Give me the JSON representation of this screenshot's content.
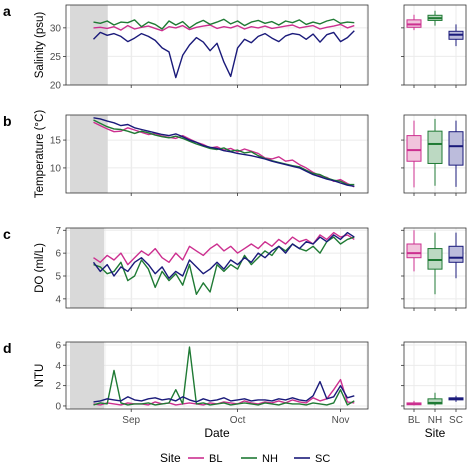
{
  "colors": {
    "BL": "#cc2f8f",
    "NH": "#1f7a34",
    "SC": "#1a1a7a",
    "shade": "#d9d9d9",
    "grid": "#ebebeb",
    "panel_border": "#333333",
    "box_fill_BL": "#f1c4dc",
    "box_fill_NH": "#bcd9c2",
    "box_fill_SC": "#bcbcdc"
  },
  "xaxis": {
    "title": "Date",
    "ticks": [
      "Sep",
      "Oct",
      "Nov"
    ]
  },
  "legend": {
    "title": "Site",
    "entries": [
      "BL",
      "NH",
      "SC"
    ],
    "position": "bottom"
  },
  "box_xaxis": {
    "title": "Site",
    "ticks": [
      "BL",
      "NH",
      "SC"
    ]
  },
  "chart_data": [
    {
      "panel": "a",
      "type": "line",
      "ylabel": "Salinity (psu)",
      "yticks": [
        "20",
        "25",
        "30"
      ],
      "ylim": [
        20,
        34
      ],
      "shaded_range": [
        0,
        11
      ],
      "x": [
        8,
        10,
        12,
        14,
        16,
        18,
        20,
        22,
        24,
        26,
        28,
        30,
        32,
        34,
        36,
        38,
        40,
        42,
        44,
        46,
        48,
        50,
        52,
        54,
        56,
        58,
        60,
        62,
        64,
        66,
        68,
        70,
        72,
        74,
        76,
        78,
        80,
        82,
        84
      ],
      "series": [
        {
          "name": "BL",
          "values": [
            30.0,
            30.1,
            29.9,
            30.2,
            29.6,
            30.4,
            29.8,
            30.1,
            30.3,
            29.9,
            29.5,
            30.2,
            30.0,
            30.4,
            29.7,
            30.1,
            30.3,
            30.5,
            29.9,
            30.2,
            30.0,
            30.4,
            29.8,
            30.2,
            30.0,
            30.3,
            29.9,
            30.1,
            30.3,
            30.5,
            30.0,
            30.2,
            30.4,
            29.8,
            30.1,
            30.3,
            30.6,
            30.0,
            30.4
          ]
        },
        {
          "name": "NH",
          "values": [
            31.0,
            30.8,
            31.2,
            30.5,
            31.0,
            30.9,
            31.4,
            30.2,
            31.0,
            30.6,
            29.8,
            31.2,
            30.5,
            31.1,
            30.0,
            30.8,
            31.3,
            30.6,
            31.0,
            31.5,
            30.7,
            31.2,
            30.4,
            31.0,
            31.3,
            30.8,
            31.1,
            30.5,
            31.2,
            30.9,
            31.4,
            30.6,
            31.0,
            30.7,
            31.2,
            31.5,
            30.8,
            31.0,
            30.9
          ]
        },
        {
          "name": "SC",
          "values": [
            28.0,
            29.2,
            28.7,
            29.0,
            28.5,
            27.6,
            28.2,
            29.0,
            28.5,
            27.8,
            26.5,
            25.8,
            21.3,
            25.2,
            27.0,
            28.3,
            27.5,
            26.0,
            27.3,
            24.0,
            21.5,
            26.5,
            28.0,
            27.4,
            28.5,
            29.0,
            28.2,
            27.6,
            28.6,
            29.0,
            28.8,
            28.0,
            28.9,
            27.5,
            28.8,
            29.2,
            27.6,
            28.3,
            29.5
          ]
        }
      ],
      "box": {
        "ylim": [
          20,
          34
        ],
        "stats": [
          {
            "site": "BL",
            "whislo": 29.6,
            "q1": 30.1,
            "median": 30.6,
            "q3": 31.4,
            "whishi": 32.3
          },
          {
            "site": "NH",
            "whislo": 30.4,
            "q1": 31.3,
            "median": 31.7,
            "q3": 32.2,
            "whishi": 33.0
          },
          {
            "site": "SC",
            "whislo": 26.8,
            "q1": 28.0,
            "median": 28.8,
            "q3": 29.4,
            "whishi": 30.6
          }
        ]
      }
    },
    {
      "panel": "b",
      "type": "line",
      "ylabel": "Temperature (°C)",
      "yticks": [
        "10",
        "15"
      ],
      "ylim": [
        5.5,
        19.5
      ],
      "shaded_range": [
        0,
        11
      ],
      "x": [
        8,
        10,
        12,
        14,
        16,
        18,
        20,
        22,
        24,
        26,
        28,
        30,
        32,
        34,
        36,
        38,
        40,
        42,
        44,
        46,
        48,
        50,
        52,
        54,
        56,
        58,
        60,
        62,
        64,
        66,
        68,
        70,
        72,
        74,
        76,
        78,
        80,
        82,
        84
      ],
      "series": [
        {
          "name": "BL",
          "values": [
            18.2,
            17.6,
            17.0,
            16.5,
            16.6,
            17.2,
            16.8,
            16.4,
            16.0,
            16.2,
            15.7,
            15.5,
            15.3,
            15.8,
            15.2,
            14.6,
            14.2,
            13.6,
            13.8,
            13.2,
            13.5,
            12.9,
            13.4,
            13.0,
            12.6,
            11.8,
            11.6,
            12.0,
            11.2,
            11.4,
            10.6,
            10.0,
            9.2,
            8.6,
            8.3,
            7.6,
            7.9,
            7.2,
            6.6
          ]
        },
        {
          "name": "NH",
          "values": [
            18.6,
            18.0,
            17.4,
            17.0,
            16.9,
            16.6,
            16.2,
            16.6,
            16.3,
            15.9,
            15.6,
            15.4,
            15.7,
            15.3,
            14.8,
            14.3,
            13.9,
            13.5,
            13.3,
            13.6,
            13.0,
            13.2,
            12.7,
            12.9,
            12.2,
            11.7,
            11.3,
            11.0,
            10.7,
            10.4,
            10.2,
            9.6,
            9.0,
            8.8,
            8.2,
            7.8,
            7.6,
            7.0,
            7.0
          ]
        },
        {
          "name": "SC",
          "values": [
            19.0,
            18.8,
            18.4,
            18.1,
            17.6,
            17.8,
            17.2,
            16.9,
            16.6,
            16.3,
            16.0,
            15.8,
            16.1,
            15.6,
            15.0,
            14.6,
            14.0,
            13.7,
            13.5,
            13.1,
            12.9,
            12.6,
            12.4,
            12.2,
            11.9,
            11.6,
            11.2,
            10.9,
            10.6,
            10.3,
            10.0,
            9.4,
            8.8,
            8.4,
            8.0,
            7.7,
            7.3,
            6.9,
            6.7
          ]
        }
      ],
      "box": {
        "ylim": [
          5.5,
          19.5
        ],
        "stats": [
          {
            "site": "BL",
            "whislo": 6.5,
            "q1": 11.2,
            "median": 13.2,
            "q3": 15.8,
            "whishi": 18.5
          },
          {
            "site": "NH",
            "whislo": 6.8,
            "q1": 10.8,
            "median": 14.3,
            "q3": 16.6,
            "whishi": 18.8
          },
          {
            "site": "SC",
            "whislo": 6.6,
            "q1": 10.5,
            "median": 13.9,
            "q3": 16.5,
            "whishi": 18.5
          }
        ]
      }
    },
    {
      "panel": "c",
      "type": "line",
      "ylabel": "DO (ml/L)",
      "yticks": [
        "4",
        "5",
        "6",
        "7"
      ],
      "ylim": [
        3.6,
        7.1
      ],
      "shaded_range": [
        0,
        10
      ],
      "x": [
        8,
        10,
        12,
        14,
        16,
        18,
        20,
        22,
        24,
        26,
        28,
        30,
        32,
        34,
        36,
        38,
        40,
        42,
        44,
        46,
        48,
        50,
        52,
        54,
        56,
        58,
        60,
        62,
        64,
        66,
        68,
        70,
        72,
        74,
        76,
        78,
        80,
        82,
        84
      ],
      "series": [
        {
          "name": "BL",
          "values": [
            5.8,
            5.6,
            5.9,
            5.7,
            6.0,
            5.5,
            5.8,
            6.1,
            5.9,
            6.2,
            5.8,
            5.6,
            6.0,
            5.7,
            6.3,
            6.1,
            5.9,
            6.2,
            6.4,
            6.1,
            6.3,
            6.0,
            6.2,
            6.4,
            6.2,
            6.5,
            6.3,
            6.6,
            6.4,
            6.7,
            6.5,
            6.6,
            6.4,
            6.8,
            6.6,
            6.9,
            6.7,
            6.8,
            6.6
          ]
        },
        {
          "name": "NH",
          "values": [
            5.5,
            5.4,
            5.1,
            5.2,
            5.6,
            4.8,
            5.0,
            5.7,
            5.3,
            4.5,
            5.2,
            4.8,
            5.1,
            4.6,
            5.5,
            4.2,
            4.7,
            4.3,
            5.5,
            5.2,
            5.5,
            5.3,
            5.9,
            5.5,
            5.8,
            6.1,
            5.9,
            6.3,
            6.1,
            6.4,
            6.2,
            6.1,
            6.3,
            6.0,
            6.5,
            6.7,
            6.4,
            6.6,
            6.7
          ]
        },
        {
          "name": "SC",
          "values": [
            5.6,
            5.2,
            5.5,
            5.0,
            5.4,
            5.2,
            5.6,
            5.8,
            5.5,
            5.1,
            5.4,
            4.9,
            5.2,
            5.0,
            5.7,
            5.4,
            5.1,
            5.3,
            5.6,
            5.3,
            5.7,
            5.5,
            5.8,
            5.6,
            6.0,
            5.8,
            6.1,
            6.3,
            6.0,
            6.4,
            6.2,
            6.5,
            6.4,
            6.7,
            6.5,
            6.8,
            6.6,
            6.9,
            6.7
          ]
        }
      ],
      "box": {
        "ylim": [
          3.6,
          7.1
        ],
        "stats": [
          {
            "site": "BL",
            "whislo": 5.2,
            "q1": 5.8,
            "median": 6.0,
            "q3": 6.4,
            "whishi": 7.0
          },
          {
            "site": "NH",
            "whislo": 4.2,
            "q1": 5.3,
            "median": 5.7,
            "q3": 6.2,
            "whishi": 6.9
          },
          {
            "site": "SC",
            "whislo": 4.9,
            "q1": 5.6,
            "median": 5.8,
            "q3": 6.3,
            "whishi": 6.9
          }
        ]
      }
    },
    {
      "panel": "d",
      "type": "line",
      "ylabel": "NTU",
      "yticks": [
        "0",
        "2",
        "4",
        "6"
      ],
      "ylim": [
        -0.3,
        6.3
      ],
      "shaded_range": [
        0,
        10
      ],
      "x": [
        8,
        10,
        12,
        14,
        16,
        18,
        20,
        22,
        24,
        26,
        28,
        30,
        32,
        34,
        36,
        38,
        40,
        42,
        44,
        46,
        48,
        50,
        52,
        54,
        56,
        58,
        60,
        62,
        64,
        66,
        68,
        70,
        72,
        74,
        76,
        78,
        80,
        82,
        84
      ],
      "series": [
        {
          "name": "BL",
          "values": [
            0.2,
            0.1,
            0.3,
            0.2,
            0.1,
            0.3,
            0.2,
            0.2,
            0.1,
            0.4,
            0.2,
            0.3,
            0.1,
            0.2,
            0.3,
            0.2,
            0.1,
            0.3,
            0.2,
            0.4,
            0.3,
            0.2,
            0.5,
            0.3,
            0.2,
            0.4,
            0.3,
            0.5,
            0.3,
            0.6,
            0.4,
            0.3,
            0.8,
            0.5,
            0.7,
            1.6,
            2.6,
            0.4,
            0.3
          ]
        },
        {
          "name": "NH",
          "values": [
            0.1,
            0.3,
            0.2,
            3.5,
            0.3,
            0.1,
            0.2,
            0.2,
            0.3,
            0.1,
            0.2,
            0.3,
            1.6,
            0.2,
            5.8,
            0.2,
            0.3,
            0.1,
            0.2,
            0.3,
            0.1,
            0.2,
            0.3,
            0.2,
            0.1,
            0.3,
            0.2,
            0.1,
            0.3,
            0.2,
            0.2,
            0.1,
            0.3,
            0.2,
            0.1,
            0.3,
            1.6,
            0.1,
            0.5
          ]
        },
        {
          "name": "SC",
          "values": [
            0.4,
            0.5,
            0.7,
            0.6,
            0.5,
            0.9,
            0.6,
            0.5,
            0.7,
            0.8,
            0.6,
            0.7,
            0.5,
            0.9,
            0.6,
            0.4,
            0.7,
            0.5,
            0.6,
            0.8,
            0.5,
            0.6,
            0.7,
            0.5,
            0.6,
            0.6,
            0.5,
            0.7,
            0.6,
            0.8,
            0.6,
            0.5,
            1.0,
            2.4,
            0.7,
            0.9,
            2.0,
            0.8,
            1.0
          ]
        }
      ],
      "box": {
        "ylim": [
          -0.3,
          6.3
        ],
        "stats": [
          {
            "site": "BL",
            "whislo": 0.05,
            "q1": 0.12,
            "median": 0.2,
            "q3": 0.3,
            "whishi": 0.5
          },
          {
            "site": "NH",
            "whislo": 0.05,
            "q1": 0.2,
            "median": 0.3,
            "q3": 0.7,
            "whishi": 1.3
          },
          {
            "site": "SC",
            "whislo": 0.4,
            "q1": 0.6,
            "median": 0.7,
            "q3": 0.8,
            "whishi": 1.0
          }
        ]
      }
    }
  ]
}
